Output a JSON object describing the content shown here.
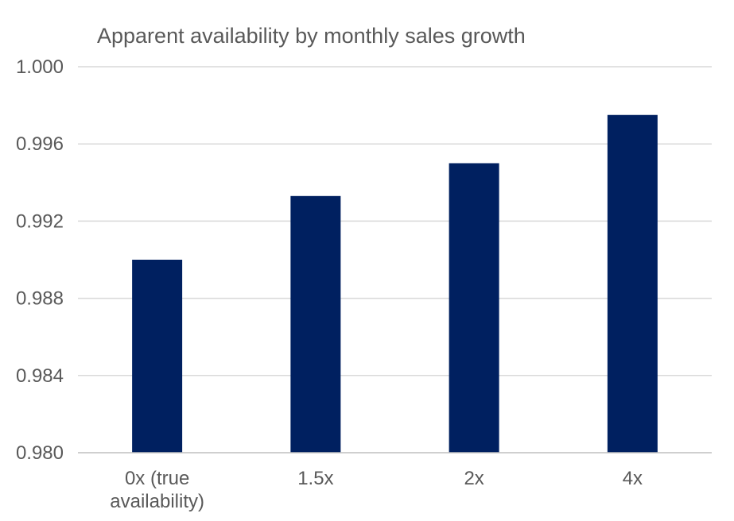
{
  "chart_data": {
    "type": "bar",
    "title": "Apparent availability by monthly sales growth",
    "xlabel": "",
    "ylabel": "",
    "categories": [
      [
        "0x (true",
        "availability)"
      ],
      [
        "1.5x"
      ],
      [
        "2x"
      ],
      [
        "4x"
      ]
    ],
    "values": [
      0.99,
      0.9933,
      0.995,
      0.9975
    ],
    "ylim": [
      0.98,
      1.0
    ],
    "yticks": [
      1.0,
      0.996,
      0.992,
      0.988,
      0.984,
      0.98
    ],
    "ytick_labels": [
      "1.000",
      "0.996",
      "0.992",
      "0.988",
      "0.984",
      "0.980"
    ],
    "grid": true,
    "legend": "none",
    "bar_color": "#002060"
  }
}
